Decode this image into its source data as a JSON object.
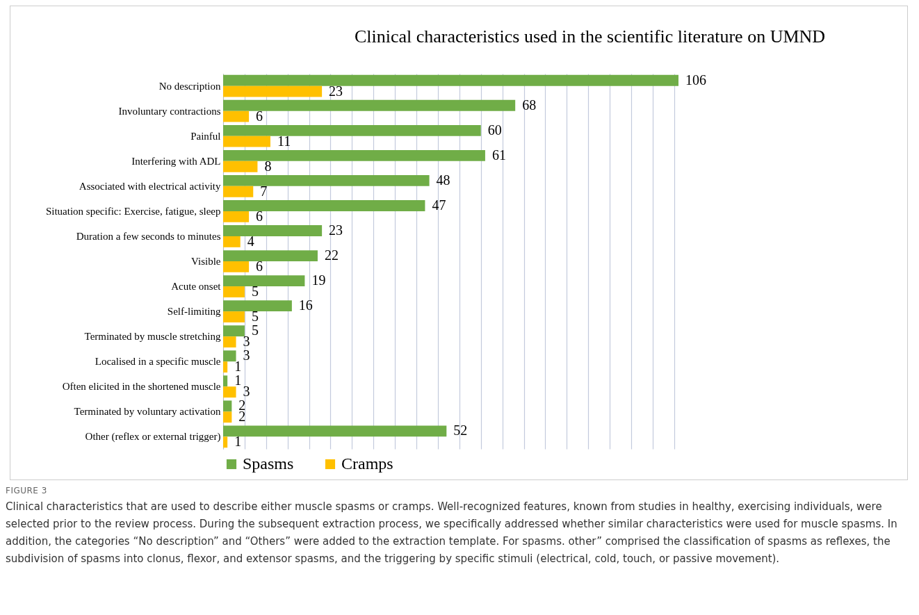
{
  "chart_data": {
    "type": "bar",
    "orientation": "horizontal",
    "title": "Clinical characteristics used in the scientific literature on UMND",
    "categories": [
      "No description",
      "Involuntary contractions",
      "Painful",
      "Interfering with ADL",
      "Associated with electrical activity",
      "Situation specific: Exercise, fatigue, sleep",
      "Duration a few seconds to minutes",
      "Visible",
      "Acute onset",
      "Self-limiting",
      "Terminated by muscle stretching",
      "Localised in a specific muscle",
      "Often elicited in the shortened muscle",
      "Terminated by voluntary activation",
      "Other (reflex or external trigger)"
    ],
    "series": [
      {
        "name": "Spasms",
        "color": "#70ad47",
        "values": [
          106,
          68,
          60,
          61,
          48,
          47,
          23,
          22,
          19,
          16,
          5,
          3,
          1,
          2,
          52
        ]
      },
      {
        "name": "Cramps",
        "color": "#ffc000",
        "values": [
          23,
          6,
          11,
          8,
          7,
          6,
          4,
          6,
          5,
          5,
          3,
          1,
          3,
          2,
          1
        ]
      }
    ],
    "tick_labels": "y",
    "grid": "x",
    "legend": "bottom",
    "data_labels": true,
    "annotations": [
      "FIGURE 3",
      "Clinical characteristics that are used to describe either muscle spasms or cramps. Well-recognized features, known from studies in healthy, exercising individuals, were selected prior to the review process. During the subsequent extraction process, we specifically addressed whether similar characteristics were used for muscle spasms. In addition, the categories “No description” and “Others” were added to the extraction template. For spasms. other” comprised the classification of spasms as reflexes, the subdivision of spasms into clonus, flexor, and extensor spasms, and the triggering by specific stimuli (electrical, cold, touch, or passive movement)."
    ]
  }
}
